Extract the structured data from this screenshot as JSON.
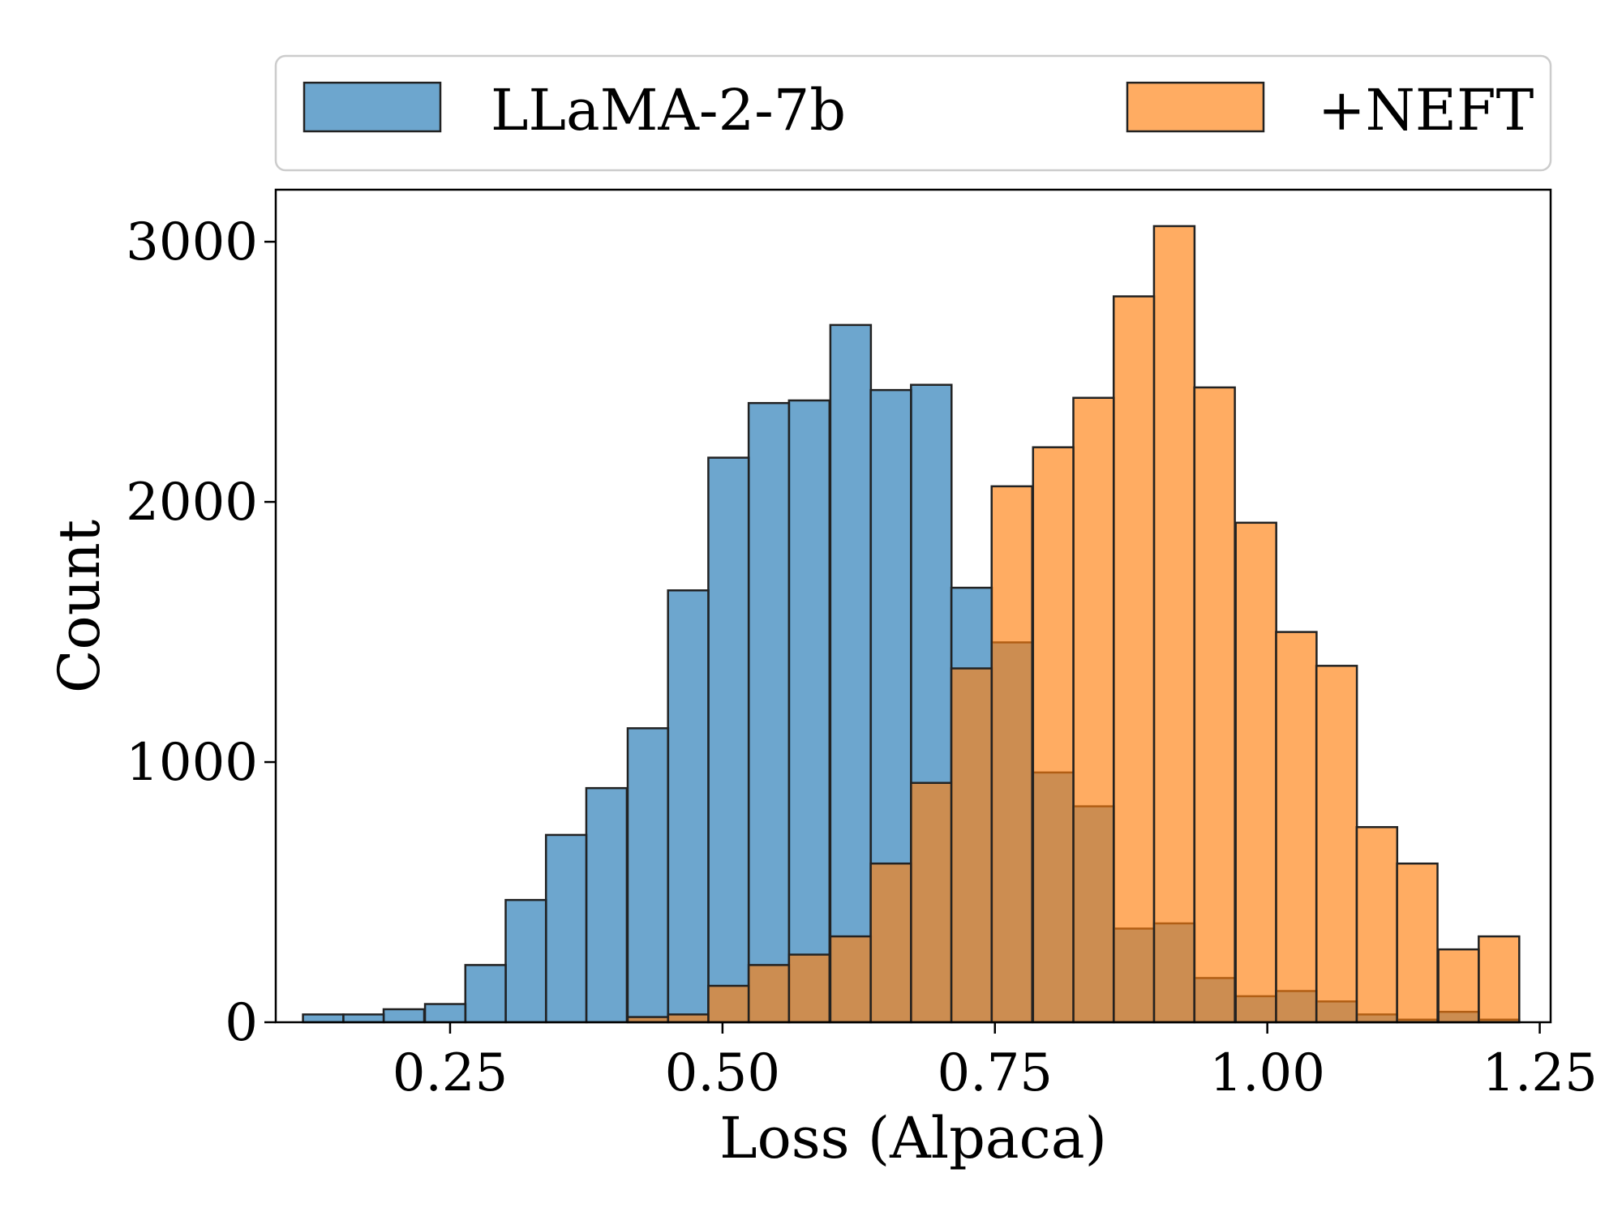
{
  "chart_data": {
    "type": "bar",
    "subtype": "overlapping-histogram",
    "xlabel": "Loss (Alpaca)",
    "ylabel": "Count",
    "xlim": [
      0.09,
      1.26
    ],
    "ylim": [
      0,
      3200
    ],
    "x_ticks": [
      0.25,
      0.5,
      0.75,
      1.0,
      1.25
    ],
    "x_tick_labels": [
      "0.25",
      "0.50",
      "0.75",
      "1.00",
      "1.25"
    ],
    "y_ticks": [
      0,
      1000,
      2000,
      3000
    ],
    "y_tick_labels": [
      "0",
      "1000",
      "2000",
      "3000"
    ],
    "grid": false,
    "legend_position": "top",
    "series": [
      {
        "name": "LLaMA-2-7b",
        "color": "#1f77b4",
        "opacity": 0.65,
        "bin_width": 0.0372,
        "bins": [
          {
            "x0": 0.115,
            "count": 30
          },
          {
            "x0": 0.152,
            "count": 30
          },
          {
            "x0": 0.189,
            "count": 50
          },
          {
            "x0": 0.227,
            "count": 70
          },
          {
            "x0": 0.264,
            "count": 220
          },
          {
            "x0": 0.301,
            "count": 470
          },
          {
            "x0": 0.338,
            "count": 720
          },
          {
            "x0": 0.375,
            "count": 900
          },
          {
            "x0": 0.413,
            "count": 1130
          },
          {
            "x0": 0.45,
            "count": 1660
          },
          {
            "x0": 0.487,
            "count": 2170
          },
          {
            "x0": 0.524,
            "count": 2380
          },
          {
            "x0": 0.561,
            "count": 2390
          },
          {
            "x0": 0.599,
            "count": 2680
          },
          {
            "x0": 0.636,
            "count": 2430
          },
          {
            "x0": 0.673,
            "count": 2450
          },
          {
            "x0": 0.71,
            "count": 1670
          },
          {
            "x0": 0.747,
            "count": 1460
          },
          {
            "x0": 0.785,
            "count": 960
          },
          {
            "x0": 0.822,
            "count": 830
          },
          {
            "x0": 0.859,
            "count": 360
          },
          {
            "x0": 0.896,
            "count": 380
          },
          {
            "x0": 0.933,
            "count": 170
          },
          {
            "x0": 0.971,
            "count": 100
          },
          {
            "x0": 1.008,
            "count": 120
          },
          {
            "x0": 1.045,
            "count": 80
          },
          {
            "x0": 1.082,
            "count": 30
          },
          {
            "x0": 1.119,
            "count": 10
          },
          {
            "x0": 1.157,
            "count": 40
          },
          {
            "x0": 1.194,
            "count": 10
          }
        ]
      },
      {
        "name": "+NEFT",
        "color": "#ff7f0e",
        "opacity": 0.65,
        "bin_width": 0.0372,
        "bins": [
          {
            "x0": 0.413,
            "count": 20
          },
          {
            "x0": 0.45,
            "count": 30
          },
          {
            "x0": 0.487,
            "count": 140
          },
          {
            "x0": 0.524,
            "count": 220
          },
          {
            "x0": 0.561,
            "count": 260
          },
          {
            "x0": 0.599,
            "count": 330
          },
          {
            "x0": 0.636,
            "count": 610
          },
          {
            "x0": 0.673,
            "count": 920
          },
          {
            "x0": 0.71,
            "count": 1360
          },
          {
            "x0": 0.747,
            "count": 2060
          },
          {
            "x0": 0.785,
            "count": 2210
          },
          {
            "x0": 0.822,
            "count": 2400
          },
          {
            "x0": 0.859,
            "count": 2790
          },
          {
            "x0": 0.896,
            "count": 3060
          },
          {
            "x0": 0.933,
            "count": 2440
          },
          {
            "x0": 0.971,
            "count": 1920
          },
          {
            "x0": 1.008,
            "count": 1500
          },
          {
            "x0": 1.045,
            "count": 1370
          },
          {
            "x0": 1.082,
            "count": 750
          },
          {
            "x0": 1.119,
            "count": 610
          },
          {
            "x0": 1.157,
            "count": 280
          },
          {
            "x0": 1.194,
            "count": 330
          }
        ]
      }
    ]
  }
}
